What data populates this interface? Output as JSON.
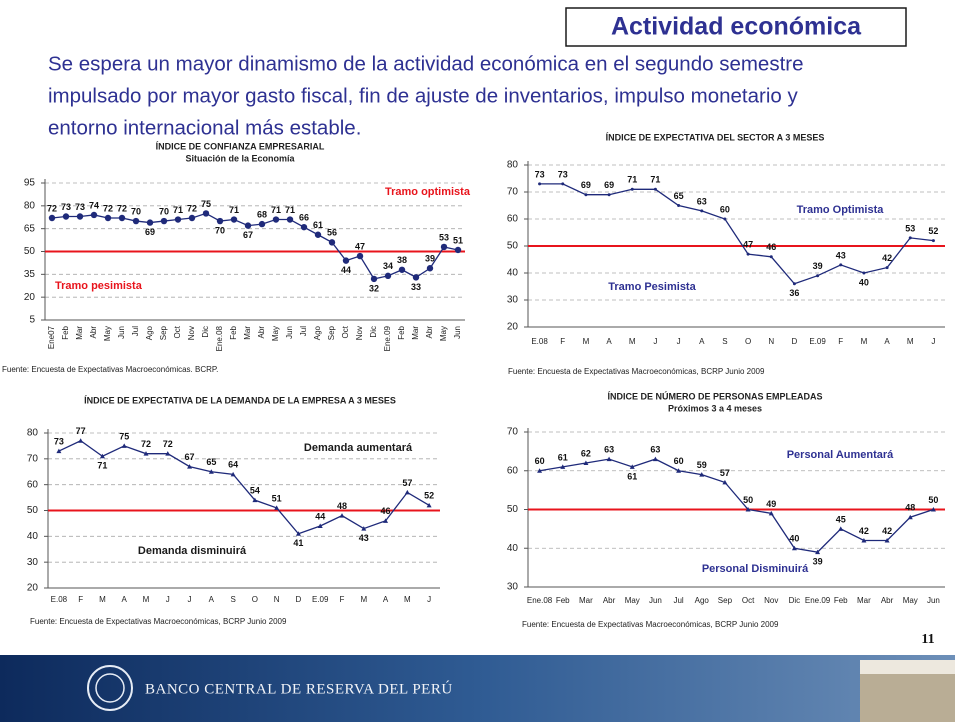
{
  "title": "Actividad económica",
  "text": [
    "Se espera un mayor dinamismo de la actividad económica en el segundo semestre",
    "impulsado por mayor gasto fiscal, fin de ajuste de inventarios, impulso monetario y",
    "entorno internacional más estable."
  ],
  "page_number": "11",
  "footer": "BANCO CENTRAL DE RESERVA DEL PERÚ",
  "chart_data": [
    {
      "type": "line",
      "title": "ÍNDICE DE CONFIANZA EMPRESARIAL",
      "subtitle": "Situación de la Economía",
      "categories": [
        "Ene07",
        "Feb",
        "Mar",
        "Abr",
        "May",
        "Jun",
        "Jul",
        "Ago",
        "Sep",
        "Oct",
        "Nov",
        "Dic",
        "Ene.08",
        "Feb",
        "Mar",
        "Abr",
        "May",
        "Jun",
        "Jul",
        "Ago",
        "Sep",
        "Oct",
        "Nov",
        "Dic",
        "Ene.09",
        "Feb",
        "Mar",
        "Abr",
        "May",
        "Jun"
      ],
      "values": [
        72,
        73,
        73,
        74,
        72,
        72,
        70,
        69,
        70,
        71,
        72,
        75,
        70,
        71,
        67,
        68,
        71,
        71,
        66,
        61,
        56,
        44,
        47,
        32,
        34,
        38,
        33,
        39,
        53,
        51
      ],
      "color": "#1f2a7a",
      "marker": "circle",
      "threshold": 50,
      "threshold_color": "#e8141c",
      "ylim": [
        5,
        95
      ],
      "yticks": [
        5,
        20,
        35,
        50,
        65,
        80,
        95
      ],
      "grid": true,
      "annotations": [
        "Tramo optimista",
        "Tramo pesimista"
      ],
      "annotation_color": "#e8141c",
      "source": "Fuente: Encuesta de Expectativas Macroeconómicas. BCRP."
    },
    {
      "type": "line",
      "title": "ÍNDICE DE EXPECTATIVA DEL SECTOR A 3 MESES",
      "categories": [
        "E.08",
        "F",
        "M",
        "A",
        "M",
        "J",
        "J",
        "A",
        "S",
        "O",
        "N",
        "D",
        "E.09",
        "F",
        "M",
        "A",
        "M",
        "J"
      ],
      "values": [
        73,
        73,
        69,
        69,
        71,
        71,
        65,
        63,
        60,
        47,
        46,
        36,
        39,
        43,
        40,
        42,
        53,
        52
      ],
      "color": "#1f2a7a",
      "marker": "dot",
      "threshold": 50,
      "threshold_color": "#e8141c",
      "ylim": [
        20,
        80
      ],
      "yticks": [
        20,
        30,
        40,
        50,
        60,
        70,
        80
      ],
      "grid": true,
      "annotations": [
        "Tramo Optimista",
        "Tramo Pesimista"
      ],
      "annotation_color": "#2e3192",
      "source": "Fuente: Encuesta de Expectativas Macroeconómicas, BCRP Junio 2009"
    },
    {
      "type": "line",
      "title": "ÍNDICE DE EXPECTATIVA DE LA DEMANDA DE LA EMPRESA A 3 MESES",
      "categories": [
        "E.08",
        "F",
        "M",
        "A",
        "M",
        "J",
        "J",
        "A",
        "S",
        "O",
        "N",
        "D",
        "E.09",
        "F",
        "M",
        "A",
        "M",
        "J"
      ],
      "values": [
        73,
        77,
        71,
        75,
        72,
        72,
        67,
        65,
        64,
        54,
        51,
        41,
        44,
        48,
        43,
        46,
        57,
        52
      ],
      "color": "#1f2a7a",
      "marker": "triangle",
      "threshold": 50,
      "threshold_color": "#e8141c",
      "ylim": [
        20,
        80
      ],
      "yticks": [
        20,
        30,
        40,
        50,
        60,
        70,
        80
      ],
      "grid": true,
      "annotations": [
        "Demanda aumentará",
        "Demanda disminuirá"
      ],
      "annotation_color": "#1a1a1a",
      "source": "Fuente: Encuesta de Expectativas Macroeconómicas, BCRP Junio 2009"
    },
    {
      "type": "line",
      "title": "ÍNDICE DE NÚMERO DE PERSONAS EMPLEADAS",
      "subtitle": "Próximos 3 a 4 meses",
      "categories": [
        "Ene.08",
        "Feb",
        "Mar",
        "Abr",
        "May",
        "Jun",
        "Jul",
        "Ago",
        "Sep",
        "Oct",
        "Nov",
        "Dic",
        "Ene.09",
        "Feb",
        "Mar",
        "Abr",
        "May",
        "Jun"
      ],
      "values": [
        60,
        61,
        62,
        63,
        61,
        63,
        60,
        59,
        57,
        50,
        49,
        40,
        39,
        45,
        42,
        42,
        48,
        50
      ],
      "color": "#1f2a7a",
      "marker": "triangle",
      "threshold": 50,
      "threshold_color": "#e8141c",
      "ylim": [
        30,
        70
      ],
      "yticks": [
        30,
        40,
        50,
        60,
        70
      ],
      "grid": true,
      "annotations": [
        "Personal Aumentará",
        "Personal Disminuirá"
      ],
      "annotation_color": "#2e3192",
      "source": "Fuente: Encuesta de Expectativas Macroeconómicas, BCRP Junio 2009"
    }
  ]
}
